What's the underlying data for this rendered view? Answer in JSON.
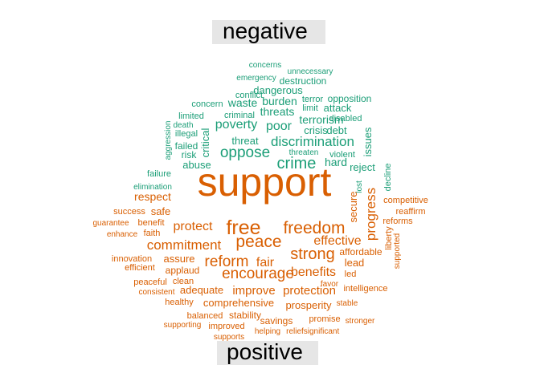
{
  "chart_data": {
    "type": "comparison_wordcloud",
    "groups": [
      {
        "name": "negative",
        "color": "#1b9e77",
        "words": [
          "concerns",
          "unnecessary",
          "emergency",
          "destruction",
          "dangerous",
          "conflict",
          "terror",
          "opposition",
          "concern",
          "waste",
          "burden",
          "limit",
          "attack",
          "limited",
          "criminal",
          "threats",
          "disabled",
          "aggression",
          "death",
          "poverty",
          "poor",
          "terrorism",
          "illegal",
          "critical",
          "crisis",
          "debt",
          "issues",
          "threat",
          "discrimination",
          "failed",
          "risk",
          "oppose",
          "threaten",
          "violent",
          "crime",
          "abuse",
          "hard",
          "reject",
          "failure",
          "elimination",
          "lost",
          "decline"
        ]
      },
      {
        "name": "positive",
        "color": "#d95f02",
        "words": [
          "support",
          "respect",
          "secure",
          "competitive",
          "success",
          "safe",
          "progress",
          "reaffirm",
          "guarantee",
          "benefit",
          "free",
          "reforms",
          "enhance",
          "faith",
          "protect",
          "freedom",
          "liberty",
          "peace",
          "commitment",
          "effective",
          "innovation",
          "assure",
          "reform",
          "fair",
          "strong",
          "affordable",
          "supported",
          "efficient",
          "lead",
          "applaud",
          "encourage",
          "benefits",
          "led",
          "peaceful",
          "clean",
          "favor",
          "consistent",
          "adequate",
          "improve",
          "protection",
          "intelligence",
          "healthy",
          "comprehensive",
          "prosperity",
          "stable",
          "balanced",
          "stability",
          "promise",
          "stronger",
          "supporting",
          "improved",
          "savings",
          "supports",
          "helping",
          "relief",
          "significant"
        ]
      }
    ]
  }
}
